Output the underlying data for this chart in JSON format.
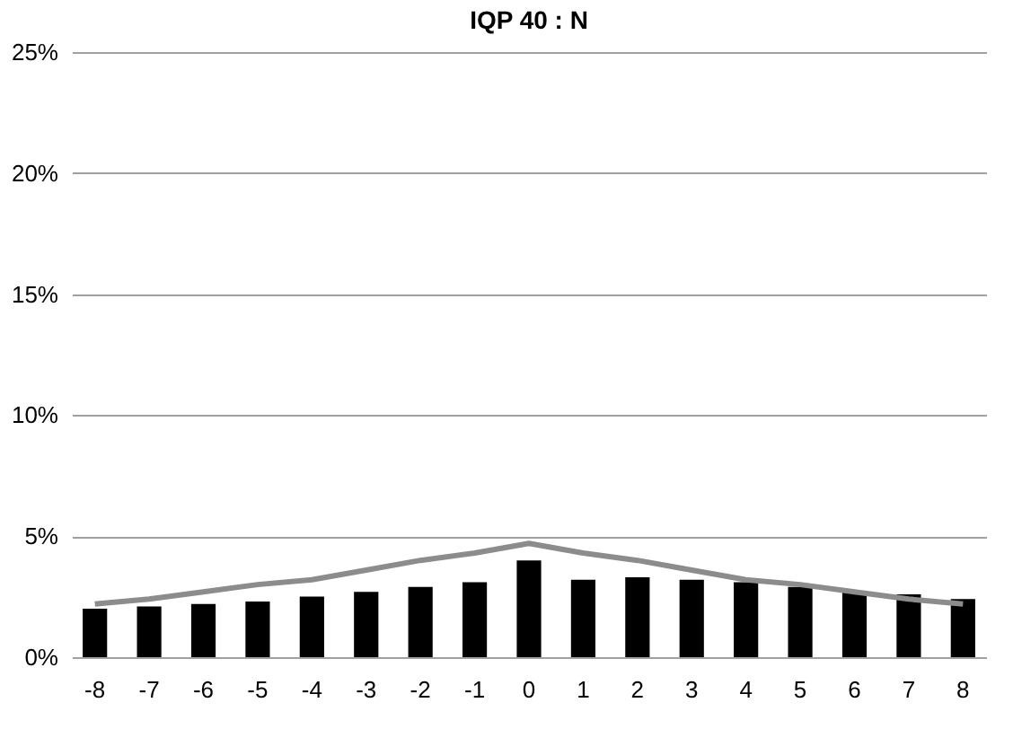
{
  "chart_data": {
    "type": "bar",
    "title": "IQP 40 : N",
    "categories": [
      "-8",
      "-7",
      "-6",
      "-5",
      "-4",
      "-3",
      "-2",
      "-1",
      "0",
      "1",
      "2",
      "3",
      "4",
      "5",
      "6",
      "7",
      "8"
    ],
    "series": [
      {
        "color": "#000000",
        "values": [
          2.0,
          2.1,
          2.2,
          2.3,
          2.5,
          2.7,
          2.9,
          3.1,
          4.0,
          3.2,
          3.3,
          3.2,
          3.1,
          2.9,
          2.7,
          2.6,
          2.4
        ]
      },
      {
        "type": "line",
        "color": "#8c8c8c",
        "values": [
          2.2,
          2.4,
          2.7,
          3.0,
          3.2,
          3.6,
          4.0,
          4.3,
          4.7,
          4.3,
          4.0,
          3.6,
          3.2,
          3.0,
          2.7,
          2.4,
          2.2
        ]
      }
    ],
    "ylim": [
      0,
      25
    ],
    "yticks": [
      {
        "value": 0,
        "label": "0%"
      },
      {
        "value": 5,
        "label": "5%"
      },
      {
        "value": 10,
        "label": "10%"
      },
      {
        "value": 15,
        "label": "15%"
      },
      {
        "value": 20,
        "label": "20%"
      },
      {
        "value": 25,
        "label": "25%"
      }
    ],
    "grid": "y",
    "legend": false,
    "marker": "none",
    "line_style": "solid"
  }
}
